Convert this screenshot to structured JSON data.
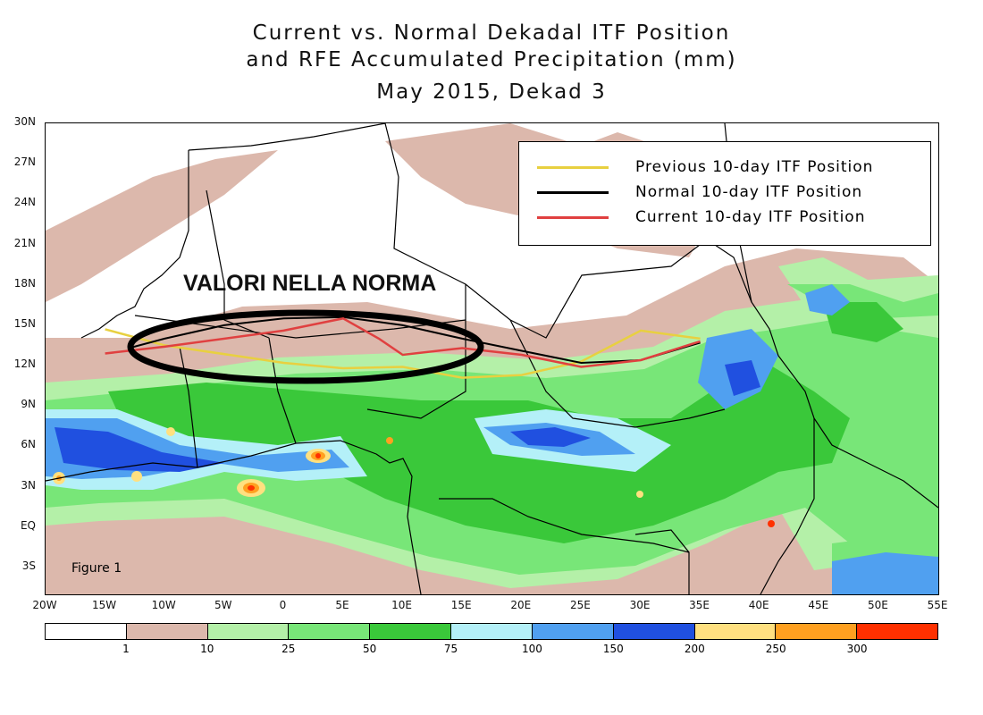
{
  "title": {
    "line1": "Current vs. Normal Dekadal ITF Position",
    "line2": "and RFE Accumulated Precipitation (mm)",
    "line3": "May 2015, Dekad 3"
  },
  "lat_labels": [
    "30N",
    "27N",
    "24N",
    "21N",
    "18N",
    "15N",
    "12N",
    "9N",
    "6N",
    "3N",
    "EQ",
    "3S"
  ],
  "lon_labels": [
    "20W",
    "15W",
    "10W",
    "5W",
    "0",
    "5E",
    "10E",
    "15E",
    "20E",
    "25E",
    "30E",
    "35E",
    "40E",
    "45E",
    "50E",
    "55E"
  ],
  "legend": {
    "items": [
      {
        "label": "Previous 10-day ITF Position",
        "color": "#e8d040"
      },
      {
        "label": "Normal 10-day ITF Position",
        "color": "#000000"
      },
      {
        "label": "Current 10-day ITF Position",
        "color": "#e04040"
      }
    ]
  },
  "annotation": "VALORI NELLA NORMA",
  "figure_label": "Figure 1",
  "colorbar": {
    "colors": [
      "#ffffff",
      "#dcb8ac",
      "#b4f0a8",
      "#78e678",
      "#3ac83a",
      "#b4f0f8",
      "#50a0f0",
      "#2050e0",
      "#ffe080",
      "#ffa020",
      "#ff3000"
    ],
    "labels": [
      "1",
      "10",
      "25",
      "50",
      "75",
      "100",
      "150",
      "200",
      "250",
      "300"
    ]
  },
  "itf_lines": {
    "previous": {
      "color": "#e8d040",
      "points": [
        [
          -15,
          14.7
        ],
        [
          -10,
          13.5
        ],
        [
          0,
          12.2
        ],
        [
          5,
          11.8
        ],
        [
          10,
          11.9
        ],
        [
          15,
          11.1
        ],
        [
          20,
          11.3
        ],
        [
          25,
          12.3
        ],
        [
          30,
          14.6
        ],
        [
          35,
          14
        ]
      ]
    },
    "normal": {
      "color": "#000000",
      "points": [
        [
          -13,
          13.3
        ],
        [
          -10,
          14
        ],
        [
          -5,
          15
        ],
        [
          0,
          15.5
        ],
        [
          5,
          15.6
        ],
        [
          10,
          15
        ],
        [
          15,
          14
        ],
        [
          20,
          13.1
        ],
        [
          25,
          12.2
        ],
        [
          30,
          12.4
        ],
        [
          35,
          13.7
        ]
      ]
    },
    "current": {
      "color": "#e04040",
      "points": [
        [
          -15,
          12.9
        ],
        [
          -10,
          13.4
        ],
        [
          0,
          14.6
        ],
        [
          5,
          15.5
        ],
        [
          8,
          14
        ],
        [
          10,
          12.8
        ],
        [
          15,
          13.3
        ],
        [
          20,
          12.8
        ],
        [
          25,
          11.9
        ],
        [
          30,
          12.4
        ],
        [
          35,
          13.8
        ]
      ]
    }
  }
}
